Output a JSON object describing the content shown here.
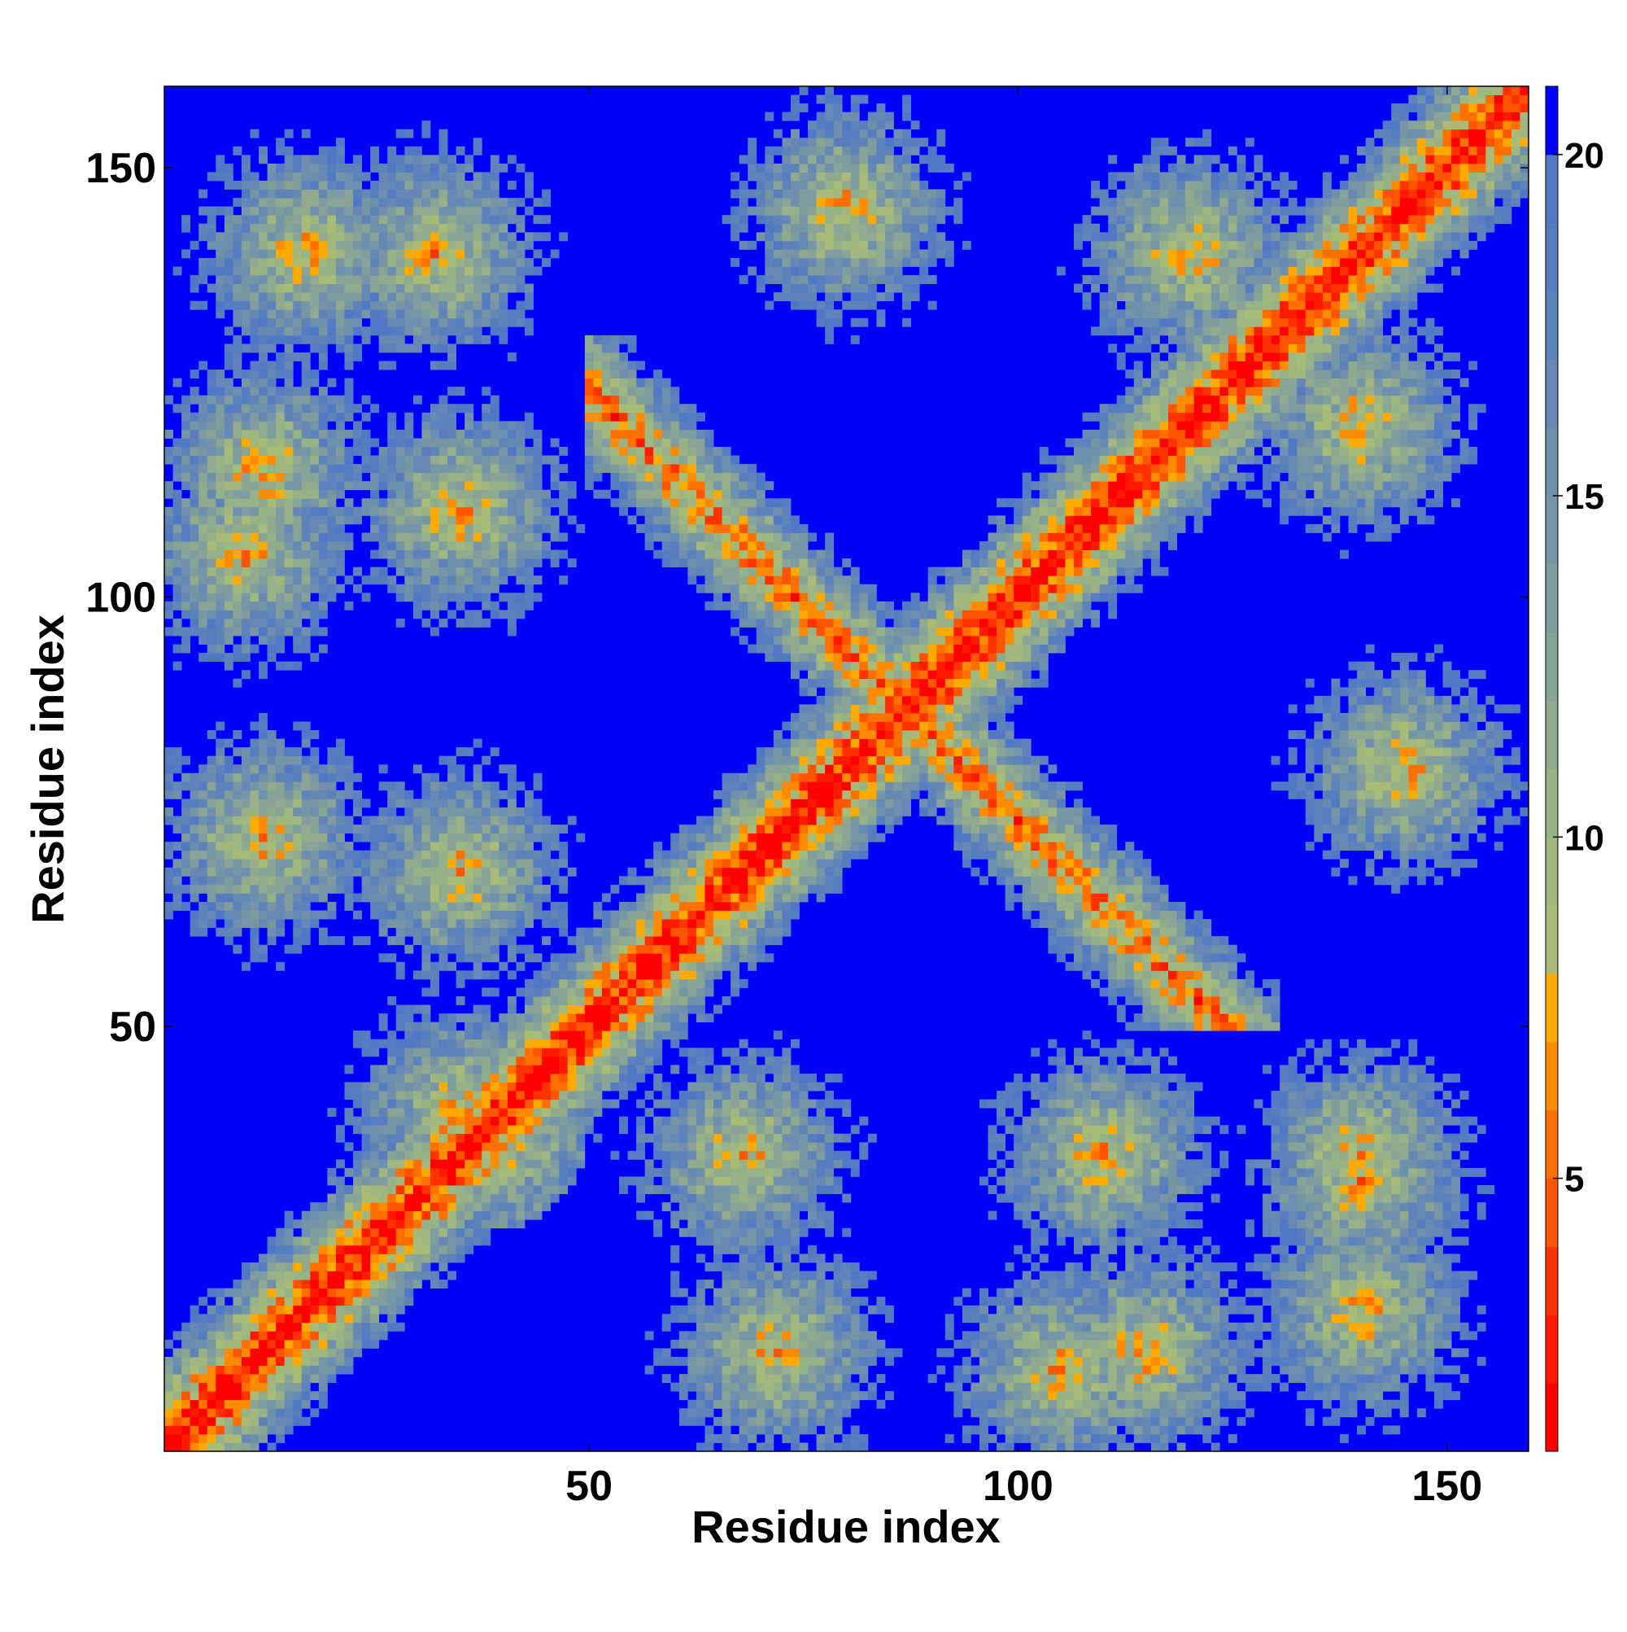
{
  "chart_data": {
    "type": "heatmap",
    "title": "",
    "xlabel": "Residue index",
    "ylabel": "Residue index",
    "xlim": [
      1,
      159
    ],
    "ylim": [
      1,
      159
    ],
    "x_ticks": [
      50,
      100,
      150
    ],
    "y_ticks": [
      50,
      100,
      150
    ],
    "x_tick_labels": [
      "50",
      "100",
      "150"
    ],
    "y_tick_labels": [
      "50",
      "100",
      "150"
    ],
    "n_residues": 159,
    "colorbar": {
      "range": [
        1,
        21
      ],
      "ticks": [
        5,
        10,
        15,
        20
      ],
      "tick_labels": [
        "5",
        "10",
        "15",
        "20"
      ],
      "levels": [
        {
          "max": 2,
          "color": "#ff0000"
        },
        {
          "max": 3,
          "color": "#ff1a00"
        },
        {
          "max": 4,
          "color": "#ff3300"
        },
        {
          "max": 5,
          "color": "#ff5500"
        },
        {
          "max": 6,
          "color": "#ff7000"
        },
        {
          "max": 7,
          "color": "#ff8c00"
        },
        {
          "max": 8,
          "color": "#ffaa00"
        },
        {
          "max": 9,
          "color": "#a8bc78"
        },
        {
          "max": 10,
          "color": "#a0b880"
        },
        {
          "max": 11,
          "color": "#98b288"
        },
        {
          "max": 12,
          "color": "#90aa8e"
        },
        {
          "max": 13,
          "color": "#88a496"
        },
        {
          "max": 14,
          "color": "#7f9d9e"
        },
        {
          "max": 15,
          "color": "#7696a6"
        },
        {
          "max": 16,
          "color": "#6e8fae"
        },
        {
          "max": 17,
          "color": "#6688b4"
        },
        {
          "max": 18,
          "color": "#5e82ba"
        },
        {
          "max": 19,
          "color": "#577dc0"
        },
        {
          "max": 20,
          "color": "#5078c4"
        },
        {
          "max": 21,
          "color": "#0000ff"
        }
      ]
    },
    "distance_cutoff": 20,
    "background_color": "#0000ff",
    "features": [
      {
        "kind": "diagonal_band",
        "description": "main diagonal contacts i=j"
      },
      {
        "kind": "antiparallel_band",
        "from": [
          86,
          88
        ],
        "to": [
          57,
          117
        ],
        "note": "runs from center to upper-left and lower-right"
      },
      {
        "kind": "antiparallel_band",
        "from": [
          86,
          88
        ],
        "to": [
          125,
          53
        ]
      },
      {
        "kind": "cluster",
        "center": [
          17,
          140
        ]
      },
      {
        "kind": "cluster",
        "center": [
          140,
          17
        ]
      },
      {
        "kind": "cluster",
        "center": [
          32,
          140
        ]
      },
      {
        "kind": "cluster",
        "center": [
          140,
          32
        ]
      },
      {
        "kind": "cluster",
        "center": [
          35,
          40
        ]
      },
      {
        "kind": "cluster",
        "center": [
          72,
          12
        ]
      },
      {
        "kind": "cluster",
        "center": [
          12,
          72
        ]
      },
      {
        "kind": "cluster",
        "center": [
          105,
          10
        ]
      },
      {
        "kind": "cluster",
        "center": [
          10,
          105
        ]
      },
      {
        "kind": "cluster",
        "center": [
          140,
          120
        ]
      },
      {
        "kind": "cluster",
        "center": [
          120,
          140
        ]
      },
      {
        "kind": "cluster",
        "center": [
          140,
          35
        ]
      },
      {
        "kind": "cluster",
        "center": [
          110,
          35
        ]
      },
      {
        "kind": "cluster",
        "center": [
          35,
          110
        ]
      },
      {
        "kind": "cluster",
        "center": [
          68,
          35
        ]
      },
      {
        "kind": "cluster",
        "center": [
          35,
          68
        ]
      },
      {
        "kind": "cluster",
        "center": [
          145,
          80
        ]
      },
      {
        "kind": "cluster",
        "center": [
          80,
          145
        ]
      },
      {
        "kind": "cluster",
        "center": [
          12,
          115
        ]
      },
      {
        "kind": "cluster",
        "center": [
          115,
          12
        ]
      }
    ]
  }
}
